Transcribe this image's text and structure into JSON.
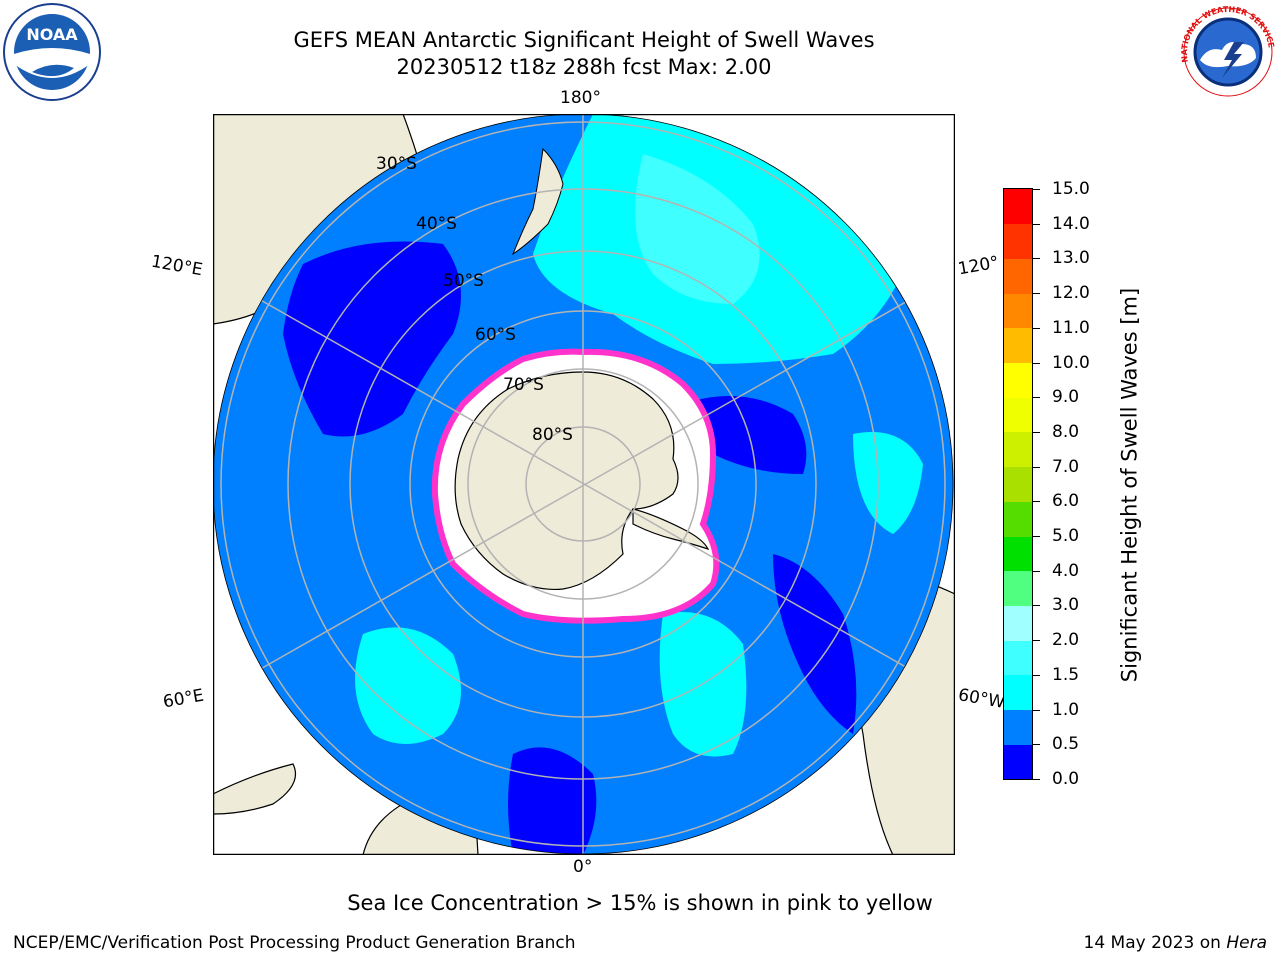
{
  "title": {
    "line1": "GEFS MEAN Antarctic Significant Height of Swell Waves",
    "line2": "20230512 t18z 288h fcst   Max: 2.00"
  },
  "map": {
    "longitude_labels": {
      "top": "180°",
      "bottom": "0°",
      "upper_left": "120°E",
      "upper_right": "120°",
      "lower_left": "60°E",
      "lower_right": "60°W"
    },
    "latitude_labels": [
      "30°S",
      "40°S",
      "50°S",
      "60°S",
      "70°S",
      "80°S"
    ],
    "colors": {
      "ocean_base": "#0080ff",
      "ocean_low": "#0000ff",
      "swell_mid": "#00ffff",
      "swell_high": "#40ffff",
      "land": "#eeebd9",
      "sea_ice": "#ffffff",
      "ice_edge": "#ff33cc",
      "grid": "#b3b3b3"
    }
  },
  "colorbar": {
    "label": "Significant Height of Swell Waves [m]",
    "ticks": [
      "0.0",
      "0.5",
      "1.0",
      "1.5",
      "2.0",
      "3.0",
      "4.0",
      "5.0",
      "6.0",
      "7.0",
      "8.0",
      "9.0",
      "10.0",
      "11.0",
      "12.0",
      "13.0",
      "14.0",
      "15.0"
    ],
    "colors": [
      "#0000ff",
      "#0080ff",
      "#00ffff",
      "#40ffff",
      "#a0ffff",
      "#50ff80",
      "#00e000",
      "#55dd00",
      "#aae000",
      "#ccf000",
      "#f0ff00",
      "#ffff00",
      "#ffbb00",
      "#ff8800",
      "#ff6600",
      "#ff3300",
      "#ff0000"
    ]
  },
  "footnote": "Sea Ice Concentration > 15% is shown in pink to yellow",
  "credit_left": "NCEP/EMC/Verification Post Processing Product Generation Branch",
  "credit_right": {
    "date": "14 May 2023 on ",
    "machine": "Hera"
  },
  "logos": {
    "noaa": "NOAA",
    "nws": "NATIONAL WEATHER SERVICE"
  }
}
